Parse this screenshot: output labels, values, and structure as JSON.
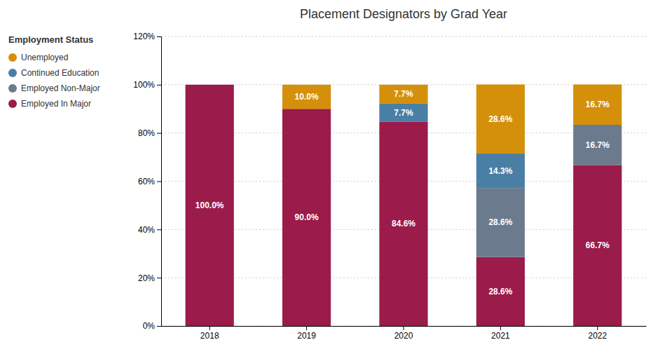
{
  "chart_data": {
    "type": "bar",
    "stacked": true,
    "title": "Placement Designators by Grad Year",
    "legend_title": "Employment Status",
    "legend": "upper left",
    "grid": true,
    "data_labels": true,
    "categories": [
      "2018",
      "2019",
      "2020",
      "2021",
      "2022"
    ],
    "series": [
      {
        "name": "Employed In Major",
        "color": "#9B1B4A",
        "values": [
          100.0,
          90.0,
          84.6,
          28.6,
          66.7
        ],
        "value_labels": [
          "100.0%",
          "90.0%",
          "84.6%",
          "28.6%",
          "66.7%"
        ]
      },
      {
        "name": "Employed Non-Major",
        "color": "#6B7B8D",
        "values": [
          0.0,
          0.0,
          0.0,
          28.6,
          16.7
        ],
        "value_labels": [
          null,
          null,
          null,
          "28.6%",
          "16.7%"
        ]
      },
      {
        "name": "Continued Education",
        "color": "#4A7FA5",
        "values": [
          0.0,
          0.0,
          7.7,
          14.3,
          0.0
        ],
        "value_labels": [
          null,
          null,
          "7.7%",
          "14.3%",
          null
        ]
      },
      {
        "name": "Unemployed",
        "color": "#D4900A",
        "values": [
          0.0,
          10.0,
          7.7,
          28.6,
          16.7
        ],
        "value_labels": [
          null,
          "10.0%",
          "7.7%",
          "28.6%",
          "16.7%"
        ]
      }
    ],
    "ylim": [
      0,
      120
    ],
    "yticks": [
      {
        "value": 0,
        "label": "0%"
      },
      {
        "value": 20,
        "label": "20%"
      },
      {
        "value": 40,
        "label": "40%"
      },
      {
        "value": 60,
        "label": "60%"
      },
      {
        "value": 80,
        "label": "80%"
      },
      {
        "value": 100,
        "label": "100%"
      },
      {
        "value": 120,
        "label": "120%"
      }
    ]
  }
}
